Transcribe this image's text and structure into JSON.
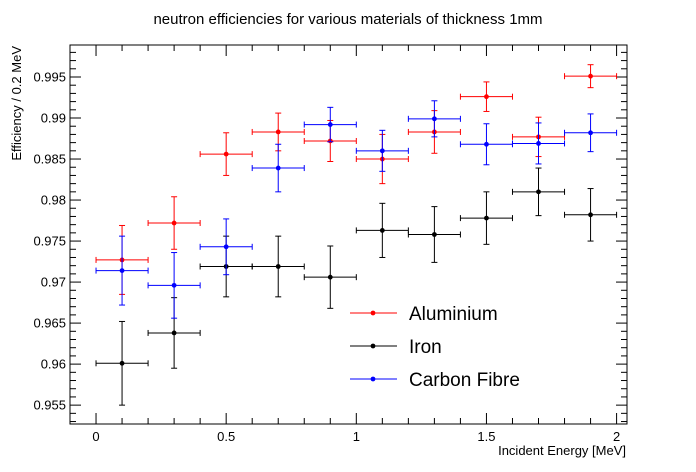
{
  "chart_data": {
    "type": "scatter",
    "title": "neutron efficiencies for various materials of thickness 1mm",
    "xlabel": "Incident Energy [MeV]",
    "ylabel": "Efficiency / 0.2 MeV",
    "xlim": [
      -0.1,
      2.04
    ],
    "ylim": [
      0.9527,
      0.9989
    ],
    "x_ticks": [
      0,
      0.5,
      1,
      1.5,
      2
    ],
    "x_tick_labels": [
      "0",
      "0.5",
      "1",
      "1.5",
      "2"
    ],
    "y_ticks": [
      0.955,
      0.96,
      0.965,
      0.97,
      0.975,
      0.98,
      0.985,
      0.99,
      0.995
    ],
    "y_tick_labels": [
      "0.955",
      "0.96",
      "0.965",
      "0.97",
      "0.975",
      "0.98",
      "0.985",
      "0.99",
      "0.995"
    ],
    "legend_position": "lower-right",
    "grid": false,
    "series": [
      {
        "name": "Aluminium",
        "color": "#ff0000",
        "x": [
          0.1,
          0.3,
          0.5,
          0.7,
          0.9,
          1.1,
          1.3,
          1.5,
          1.7,
          1.9
        ],
        "x_err": 0.1,
        "y": [
          0.9727,
          0.9772,
          0.9856,
          0.9883,
          0.9872,
          0.985,
          0.9883,
          0.9926,
          0.9877,
          0.9951
        ],
        "y_err": [
          0.0042,
          0.0032,
          0.0026,
          0.0023,
          0.0025,
          0.003,
          0.0026,
          0.0018,
          0.0024,
          0.0014
        ]
      },
      {
        "name": "Iron",
        "color": "#000000",
        "x": [
          0.1,
          0.3,
          0.5,
          0.7,
          0.9,
          1.1,
          1.3,
          1.5,
          1.7,
          1.9
        ],
        "x_err": 0.1,
        "y": [
          0.9601,
          0.9638,
          0.9719,
          0.9719,
          0.9706,
          0.9763,
          0.9758,
          0.9778,
          0.981,
          0.9782
        ],
        "y_err": [
          0.0051,
          0.0043,
          0.0037,
          0.0037,
          0.0038,
          0.0033,
          0.0034,
          0.0032,
          0.0029,
          0.0032
        ]
      },
      {
        "name": "Carbon Fibre",
        "color": "#0000ff",
        "x": [
          0.1,
          0.3,
          0.5,
          0.7,
          0.9,
          1.1,
          1.3,
          1.5,
          1.7,
          1.9
        ],
        "x_err": 0.1,
        "y": [
          0.9714,
          0.9696,
          0.9743,
          0.9839,
          0.9892,
          0.986,
          0.9899,
          0.9868,
          0.9869,
          0.9882
        ],
        "y_err": [
          0.0042,
          0.004,
          0.0034,
          0.0029,
          0.0021,
          0.0025,
          0.0022,
          0.0025,
          0.0025,
          0.0023
        ]
      }
    ]
  }
}
